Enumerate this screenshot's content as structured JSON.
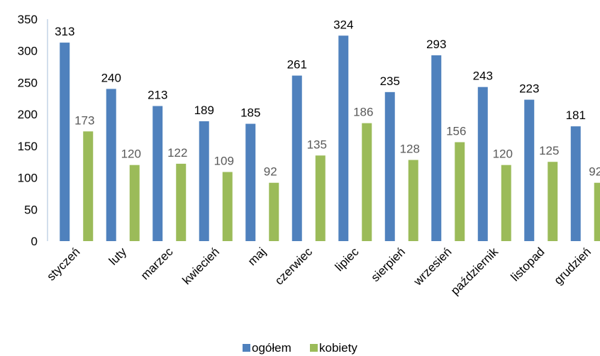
{
  "chart_data": {
    "type": "bar",
    "categories": [
      "styczeń",
      "luty",
      "marzec",
      "kwiecień",
      "maj",
      "czerwiec",
      "lipiec",
      "sierpień",
      "wrzesień",
      "październik",
      "listopad",
      "grudzień"
    ],
    "series": [
      {
        "name": "ogółem",
        "color": "#4f81bd",
        "values": [
          313,
          240,
          213,
          189,
          185,
          261,
          324,
          235,
          293,
          243,
          223,
          181
        ]
      },
      {
        "name": "kobiety",
        "color": "#9bbb59",
        "values": [
          173,
          120,
          122,
          109,
          92,
          135,
          186,
          128,
          156,
          120,
          125,
          92
        ]
      }
    ],
    "ylim": [
      0,
      350
    ],
    "yticks": [
      0,
      50,
      100,
      150,
      200,
      250,
      300,
      350
    ],
    "grid": false,
    "legend": "bottom"
  }
}
